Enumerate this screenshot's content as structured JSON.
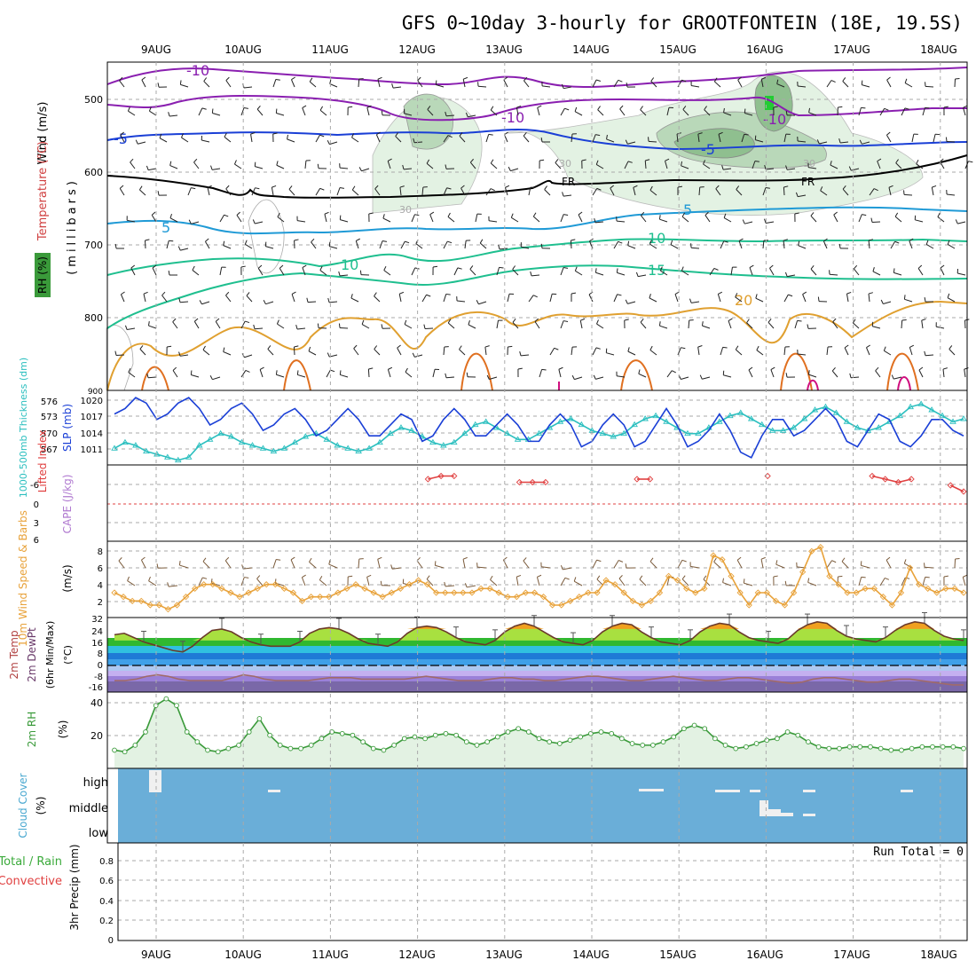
{
  "title": "GFS 0~10day 3-hourly for GROOTFONTEIN (18E, 19.5S)",
  "dates": [
    "9AUG",
    "10AUG",
    "11AUG",
    "12AUG",
    "13AUG",
    "14AUG",
    "15AUG",
    "16AUG",
    "17AUG",
    "18AUG"
  ],
  "colors": {
    "grid": "#aaaaaa",
    "purple": "#8a1fb0",
    "blue": "#1a3fd6",
    "lightblue": "#1f9ad6",
    "teal": "#1fbf8f",
    "orange": "#e0a030",
    "darkorange": "#e07020",
    "magenta": "#d0107f",
    "sky": "#6aaed8",
    "rh_green": "#3a9a3a",
    "cyan": "#2bbfbf",
    "red": "#e04040",
    "wind_orange": "#e8a23a",
    "brown": "#7a5a3a"
  },
  "panels": {
    "upper": {
      "label_wind": "Wind (m/s)",
      "label_temp": "Temperature (°C)",
      "label_rh": "RH (%)",
      "label_press": "(millibars)",
      "y_ticks": [
        "500",
        "600",
        "700",
        "800",
        "900"
      ],
      "contour_labels": [
        "-10",
        "-10",
        "-10",
        "-5",
        "-5",
        "5",
        "5",
        "10",
        "10",
        "15",
        "20",
        "FR",
        "FR",
        "30",
        "30",
        "30"
      ]
    },
    "slp": {
      "label_thk": "1000-500mb Thickness (dm)",
      "label_slp": "SLP (mb)",
      "thk_ticks": [
        "576",
        "573",
        "570",
        "567"
      ],
      "slp_ticks": [
        "1020",
        "1017",
        "1014",
        "1011"
      ]
    },
    "cape": {
      "label_li": "Lifted Index",
      "label_cape": "CAPE (J/kg)",
      "y_ticks": [
        "-6",
        "-3",
        "0",
        "3",
        "6"
      ]
    },
    "wind10": {
      "label": "10m Wind Speed & Barbs",
      "unit": "(m/s)",
      "y_ticks": [
        "8",
        "6",
        "4",
        "2"
      ]
    },
    "temp2m": {
      "label1": "2m Temp",
      "label2": "2m DewPt",
      "label3": "(6hr Min/Max)",
      "unit": "(°C)",
      "y_ticks": [
        "32",
        "24",
        "16",
        "8",
        "0",
        "-8",
        "-16"
      ]
    },
    "rh2m": {
      "label": "2m RH",
      "unit": "(%)",
      "y_ticks": [
        "40",
        "20"
      ]
    },
    "cloud": {
      "label": "Cloud Cover",
      "unit": "(%)",
      "levels": [
        "high",
        "middle",
        "low"
      ]
    },
    "precip": {
      "label1": "Total / Rain",
      "label2": "Convective",
      "label3": "3hr Precip (mm)",
      "run_total": "Run Total = 0",
      "y_ticks": [
        "0.8",
        "0.6",
        "0.4",
        "0.2",
        "0"
      ]
    }
  },
  "chart_data": [
    {
      "type": "line",
      "title": "SLP (mb)",
      "series": [
        {
          "name": "SLP",
          "values": [
            1017,
            1018,
            1020,
            1019,
            1016,
            1017,
            1019,
            1020,
            1018,
            1015,
            1016,
            1018,
            1019,
            1017,
            1014,
            1015,
            1017,
            1018,
            1016,
            1013,
            1014,
            1016,
            1018,
            1016,
            1013,
            1013,
            1015,
            1017,
            1016,
            1012,
            1013,
            1016,
            1018,
            1016,
            1013,
            1013,
            1015,
            1017,
            1015,
            1012,
            1012,
            1015,
            1017,
            1015,
            1011,
            1012,
            1015,
            1017,
            1015,
            1011,
            1012,
            1015,
            1018,
            1015,
            1011,
            1012,
            1014,
            1017,
            1014,
            1010,
            1009,
            1013,
            1016,
            1016,
            1013,
            1014,
            1016,
            1018,
            1016,
            1012,
            1011,
            1014,
            1017,
            1016,
            1012,
            1011,
            1013,
            1016,
            1016,
            1014,
            1013
          ]
        }
      ],
      "ylim": [
        1008,
        1021
      ]
    },
    {
      "type": "line",
      "title": "1000-500mb Thickness (dm)",
      "series": [
        {
          "name": "Thickness",
          "values": [
            567.5,
            568.5,
            568,
            567,
            566.5,
            566,
            565.5,
            566,
            568,
            569,
            570,
            569.5,
            568.5,
            568,
            567.5,
            567,
            567.5,
            568.5,
            569.5,
            570,
            569,
            568,
            567.5,
            567,
            567.5,
            568.5,
            570,
            571,
            570.5,
            569.5,
            568.5,
            568,
            568.5,
            570,
            571.5,
            572,
            571,
            570,
            569,
            569,
            570,
            571,
            572,
            572.5,
            571.5,
            570.5,
            570,
            569.5,
            570,
            571.5,
            572.5,
            573,
            572,
            571,
            570,
            570,
            571,
            572,
            573,
            573.5,
            572.5,
            571.5,
            570.5,
            570.5,
            571,
            572.5,
            574,
            574.5,
            573.5,
            572,
            571,
            570.5,
            571,
            572,
            573,
            574.5,
            575,
            574,
            573,
            572,
            572.5
          ]
        }
      ],
      "ylim": [
        565,
        577
      ]
    },
    {
      "type": "line",
      "title": "Lifted Index",
      "series": [
        {
          "name": "LI",
          "values": [
            null,
            null,
            null,
            null,
            null,
            null,
            null,
            null,
            null,
            null,
            null,
            null,
            null,
            null,
            null,
            null,
            null,
            null,
            null,
            null,
            null,
            null,
            null,
            null,
            4,
            4.5,
            4.5,
            null,
            null,
            null,
            null,
            3.5,
            3.5,
            3.5,
            null,
            null,
            null,
            null,
            null,
            null,
            4,
            4,
            null,
            null,
            null,
            null,
            null,
            null,
            null,
            null,
            4.5,
            null,
            null,
            null,
            null,
            null,
            null,
            null,
            4.5,
            4,
            3.5,
            4,
            null,
            null,
            3,
            2
          ]
        }
      ],
      "ylim": [
        -6,
        6
      ]
    },
    {
      "type": "line",
      "title": "10m Wind Speed (m/s)",
      "series": [
        {
          "name": "Wind",
          "values": [
            3,
            2.5,
            2,
            2,
            1.5,
            1.5,
            1,
            1.5,
            2.5,
            3.5,
            4,
            4,
            3.5,
            3,
            2.5,
            3,
            3.5,
            4,
            4,
            3.5,
            3,
            2,
            2.5,
            2.5,
            2.5,
            3,
            3.5,
            4,
            3.5,
            3,
            2.5,
            3,
            3.5,
            4,
            4.5,
            4,
            3,
            3,
            3,
            3,
            3,
            3.5,
            3.5,
            3,
            2.5,
            2.5,
            3,
            3,
            2.5,
            1.5,
            1.5,
            2,
            2.5,
            3,
            3,
            4.5,
            4,
            3,
            2,
            1.5,
            2,
            3,
            5,
            4.5,
            3.5,
            3,
            3.5,
            7.5,
            7,
            5,
            3,
            1.5,
            3,
            3,
            2,
            1.5,
            3,
            5.5,
            8,
            8.5,
            5,
            4,
            3,
            3,
            3.5,
            3.5,
            2.5,
            1.5,
            3,
            6,
            4,
            3.5,
            3,
            3.5,
            3.5,
            3
          ]
        }
      ],
      "ylim": [
        0,
        9
      ]
    },
    {
      "type": "area",
      "title": "2m Temp (°C)",
      "series": [
        {
          "name": "Temp",
          "values": [
            20,
            21,
            18,
            15,
            13,
            11,
            9,
            8,
            12,
            18,
            23,
            24,
            22,
            18,
            15,
            13,
            12,
            12,
            12,
            15,
            21,
            24,
            25,
            24,
            21,
            17,
            14,
            13,
            12,
            15,
            21,
            25,
            26,
            25,
            22,
            18,
            15,
            14,
            13,
            16,
            22,
            26,
            28,
            26,
            22,
            18,
            15,
            14,
            13,
            16,
            22,
            26,
            28,
            27,
            22,
            18,
            15,
            14,
            13,
            16,
            22,
            26,
            28,
            27,
            22,
            18,
            16,
            15,
            14,
            17,
            23,
            27,
            29,
            28,
            23,
            19,
            17,
            16,
            15,
            18,
            23,
            27,
            29,
            28,
            23,
            19,
            17,
            16
          ]
        }
      ],
      "ylim": [
        -20,
        32
      ]
    },
    {
      "type": "line",
      "title": "2m DewPt (°C)",
      "series": [
        {
          "name": "Dew",
          "values": [
            -12,
            -12,
            -11,
            -9,
            -8,
            -9,
            -11,
            -12,
            -12,
            -12,
            -12,
            -10,
            -8,
            -9,
            -11,
            -12,
            -12,
            -12,
            -12,
            -11,
            -10,
            -10,
            -10,
            -11,
            -11,
            -11,
            -11,
            -11,
            -10,
            -9,
            -10,
            -11,
            -12,
            -12,
            -12,
            -11,
            -10,
            -10,
            -11,
            -11,
            -12,
            -12,
            -11,
            -10,
            -9,
            -9,
            -10,
            -11,
            -12,
            -12,
            -11,
            -10,
            -9,
            -10,
            -11,
            -12,
            -12,
            -11,
            -10,
            -10,
            -11,
            -12,
            -13,
            -14,
            -13,
            -11,
            -10,
            -10,
            -11,
            -12,
            -13,
            -13,
            -12,
            -11,
            -11,
            -12,
            -13,
            -14,
            -15,
            -15
          ]
        }
      ],
      "ylim": [
        -20,
        32
      ]
    },
    {
      "type": "area",
      "title": "2m RH (%)",
      "series": [
        {
          "name": "RH",
          "values": [
            11,
            10,
            14,
            22,
            38,
            42,
            38,
            22,
            16,
            11,
            10,
            12,
            14,
            22,
            30,
            20,
            14,
            12,
            12,
            14,
            18,
            22,
            21,
            20,
            16,
            12,
            11,
            14,
            18,
            19,
            18,
            20,
            21,
            20,
            16,
            14,
            16,
            19,
            22,
            24,
            22,
            18,
            16,
            15,
            17,
            19,
            21,
            22,
            21,
            18,
            15,
            14,
            14,
            16,
            19,
            24,
            26,
            24,
            18,
            14,
            12,
            13,
            15,
            17,
            18,
            22,
            20,
            16,
            13,
            12,
            12,
            13,
            13,
            13,
            12,
            11,
            11,
            12,
            13,
            13,
            13,
            13,
            12
          ]
        }
      ],
      "ylim": [
        0,
        45
      ]
    },
    {
      "type": "table",
      "title": "3hr Precip (mm)",
      "series": [
        {
          "name": "Precip",
          "values": [
            0
          ]
        }
      ],
      "ylim": [
        0,
        0.9
      ]
    }
  ]
}
